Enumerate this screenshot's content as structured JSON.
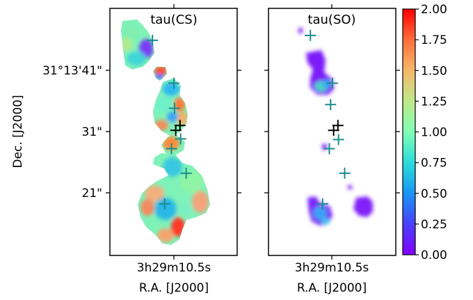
{
  "chart_data": [
    {
      "type": "heatmap",
      "title": "tau(CS)",
      "ylabel": "Dec. [J2000]",
      "xlabel": "R.A. [J2000]",
      "xticks": [
        "3h29m10.5s"
      ],
      "yticks": [
        "31°13'41\"",
        "31\"",
        "21\""
      ],
      "markers": [
        {
          "ra_offset_arcsec": -3.5,
          "dec_offset_arcsec": 14.9,
          "color": "teal"
        },
        {
          "ra_offset_arcsec": 0.0,
          "dec_offset_arcsec": 7.9,
          "color": "teal"
        },
        {
          "ra_offset_arcsec": 0.1,
          "dec_offset_arcsec": 3.8,
          "color": "teal"
        },
        {
          "ra_offset_arcsec": 0.3,
          "dec_offset_arcsec": 0.2,
          "color": "black"
        },
        {
          "ra_offset_arcsec": 1.0,
          "dec_offset_arcsec": 1.0,
          "color": "black"
        },
        {
          "ra_offset_arcsec": 1.1,
          "dec_offset_arcsec": -1.2,
          "color": "teal"
        },
        {
          "ra_offset_arcsec": -0.4,
          "dec_offset_arcsec": -2.8,
          "color": "teal"
        },
        {
          "ra_offset_arcsec": 2.0,
          "dec_offset_arcsec": -6.8,
          "color": "teal"
        },
        {
          "ra_offset_arcsec": -1.5,
          "dec_offset_arcsec": -11.8,
          "color": "teal"
        }
      ]
    },
    {
      "type": "heatmap",
      "title": "tau(SO)",
      "xlabel": "R.A. [J2000]",
      "xticks": [
        "3h29m10.5s"
      ],
      "markers": [
        {
          "ra_offset_arcsec": -3.5,
          "dec_offset_arcsec": 15.7,
          "color": "teal"
        },
        {
          "ra_offset_arcsec": 0.1,
          "dec_offset_arcsec": 7.9,
          "color": "teal"
        },
        {
          "ra_offset_arcsec": -0.2,
          "dec_offset_arcsec": 4.4,
          "color": "teal"
        },
        {
          "ra_offset_arcsec": 0.3,
          "dec_offset_arcsec": 0.2,
          "color": "black"
        },
        {
          "ra_offset_arcsec": 1.0,
          "dec_offset_arcsec": 1.0,
          "color": "black"
        },
        {
          "ra_offset_arcsec": 1.1,
          "dec_offset_arcsec": -1.3,
          "color": "teal"
        },
        {
          "ra_offset_arcsec": -0.4,
          "dec_offset_arcsec": -2.8,
          "color": "teal"
        },
        {
          "ra_offset_arcsec": 2.1,
          "dec_offset_arcsec": -6.8,
          "color": "teal"
        },
        {
          "ra_offset_arcsec": -1.5,
          "dec_offset_arcsec": -11.8,
          "color": "teal"
        }
      ]
    }
  ],
  "colorbar": {
    "vmin": 0.0,
    "vmax": 2.0,
    "colormap": "rainbow",
    "ticks": [
      "0.00",
      "0.25",
      "0.50",
      "0.75",
      "1.00",
      "1.25",
      "1.50",
      "1.75",
      "2.00"
    ]
  },
  "colors": {
    "marker_teal": "#1a8c8c",
    "marker_black": "#000000"
  }
}
